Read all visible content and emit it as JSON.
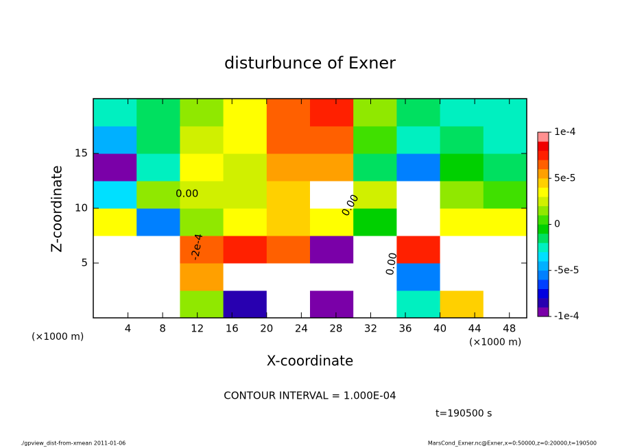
{
  "chart_data": {
    "type": "contour",
    "title": "disturbunce of Exner",
    "xlabel": "X-coordinate",
    "ylabel": "Z-coordinate",
    "x_unit_label": "(×1000 m)",
    "xlim": [
      0,
      50
    ],
    "ylim": [
      0,
      20
    ],
    "xticks": [
      4,
      8,
      12,
      16,
      20,
      24,
      28,
      32,
      36,
      40,
      44,
      48
    ],
    "yticks": [
      5,
      10,
      15
    ],
    "x": [
      2.5,
      7.5,
      12.5,
      17.5,
      22.5,
      27.5,
      32.5,
      37.5,
      42.5,
      47.5
    ],
    "y": [
      1.25,
      3.75,
      6.25,
      8.75,
      11.25,
      13.75,
      16.25,
      18.75
    ],
    "z": [
      [
        0.0002,
        -0.0002,
        1e-05,
        -8e-05,
        0.0002,
        -0.0001,
        0.0002,
        -3e-05,
        4e-05,
        0.0002
      ],
      [
        0.0002,
        -0.0002,
        5e-05,
        0.0002,
        -0.0002,
        -0.0002,
        -0.0002,
        -6e-05,
        0.0002,
        0.0002
      ],
      [
        0.0002,
        0.0002,
        6e-05,
        7e-05,
        6e-05,
        -0.0001,
        0.0002,
        7e-05,
        0.0002,
        0.0002
      ],
      [
        3e-05,
        -6e-05,
        1e-05,
        3e-05,
        4e-05,
        3e-05,
        -1e-05,
        0.0002,
        3e-05,
        3e-05
      ],
      [
        -4e-05,
        1e-05,
        2e-05,
        2e-05,
        4e-05,
        0.0002,
        2e-05,
        0.0002,
        1e-05,
        0
      ],
      [
        -9e-05,
        -3e-05,
        3e-05,
        2e-05,
        5e-05,
        5e-05,
        -2e-05,
        -6e-05,
        -1e-05,
        -2e-05
      ],
      [
        -5e-05,
        -2e-05,
        2e-05,
        3e-05,
        6e-05,
        6e-05,
        0,
        -3e-05,
        -2e-05,
        -3e-05
      ],
      [
        -3e-05,
        -2e-05,
        1e-05,
        3e-05,
        6e-05,
        7e-05,
        1e-05,
        -2e-05,
        -3e-05,
        -3e-05
      ]
    ],
    "clim": [
      -0.0001,
      0.0001
    ],
    "colors": [
      "#7a00a8",
      "#2800b0",
      "#0000e0",
      "#0040ff",
      "#0080ff",
      "#00b0ff",
      "#00e0ff",
      "#00f0c0",
      "#00e060",
      "#00d000",
      "#40e000",
      "#90e800",
      "#d0f000",
      "#ffff00",
      "#ffd000",
      "#ffa000",
      "#ff6000",
      "#ff2000",
      "#f00000",
      "#ff9090"
    ],
    "cticks": [
      {
        "value": 0.0001,
        "label": "1e-4"
      },
      {
        "value": 5e-05,
        "label": "5e-5"
      },
      0,
      {
        "value": -5e-05,
        "label": "-5e-5"
      },
      {
        "value": -0.0001,
        "label": "-1e-4"
      }
    ],
    "contour_labels": [
      "0.00",
      "0.00",
      "-2e-4",
      "0.00"
    ],
    "contour_interval": "CONTOUR INTERVAL = 1.000E-04",
    "time_label": "t=190500 s",
    "footer_left": "./gpview_dist-from-xmean  2011-01-06",
    "footer_right": "MarsCond_Exner.nc@Exner,x=0:50000,z=0:20000,t=190500"
  }
}
